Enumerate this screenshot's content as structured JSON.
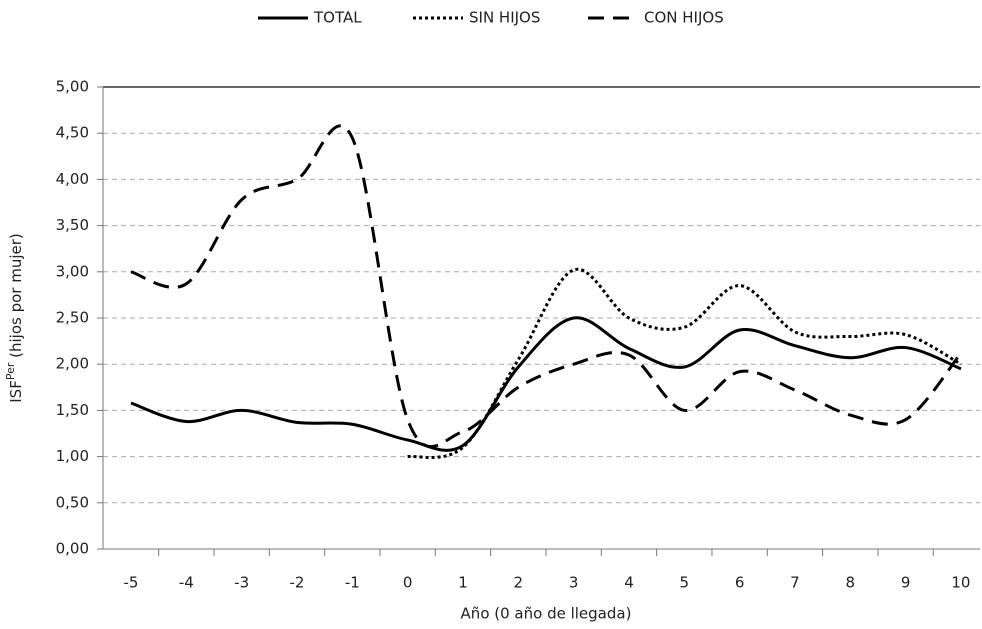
{
  "chart_data": {
    "type": "line",
    "xlabel": "Año (0 año de llegada)",
    "ylabel": {
      "base": "ISF",
      "sup": "Per",
      "rest": " (hijos por mujer)"
    },
    "categories": [
      "-5",
      "-4",
      "-3",
      "-2",
      "-1",
      "0",
      "1",
      "2",
      "3",
      "4",
      "5",
      "6",
      "7",
      "8",
      "9",
      "10"
    ],
    "series": [
      {
        "name": "TOTAL",
        "color": "#000000",
        "dash": "solid",
        "values": [
          1.58,
          1.38,
          1.5,
          1.37,
          1.35,
          1.18,
          1.12,
          1.97,
          2.5,
          2.17,
          1.97,
          2.37,
          2.2,
          2.07,
          2.18,
          1.95
        ]
      },
      {
        "name": "SIN HIJOS",
        "color": "#000000",
        "dash": "dotted",
        "values": [
          null,
          null,
          null,
          null,
          null,
          1.0,
          1.1,
          2.05,
          3.02,
          2.5,
          2.4,
          2.85,
          2.35,
          2.3,
          2.32,
          2.0
        ]
      },
      {
        "name": "CON HIJOS",
        "color": "#000000",
        "dash": "dashed",
        "values": [
          3.0,
          2.87,
          3.78,
          4.0,
          4.45,
          1.4,
          1.27,
          1.75,
          2.0,
          2.1,
          1.5,
          1.92,
          1.72,
          1.45,
          1.4,
          2.12
        ]
      }
    ],
    "ylim": [
      0,
      5
    ],
    "yticks": [
      {
        "value": 0,
        "label": "0,00"
      },
      {
        "value": 0.5,
        "label": "0,50"
      },
      {
        "value": 1,
        "label": "1,00"
      },
      {
        "value": 1.5,
        "label": "1,50"
      },
      {
        "value": 2,
        "label": "2,00"
      },
      {
        "value": 2.5,
        "label": "2,50"
      },
      {
        "value": 3,
        "label": "3,00"
      },
      {
        "value": 3.5,
        "label": "3,50"
      },
      {
        "value": 4,
        "label": "4,00"
      },
      {
        "value": 4.5,
        "label": "4,50"
      },
      {
        "value": 5,
        "label": "5,00"
      }
    ],
    "grid": true,
    "legend": "top"
  }
}
